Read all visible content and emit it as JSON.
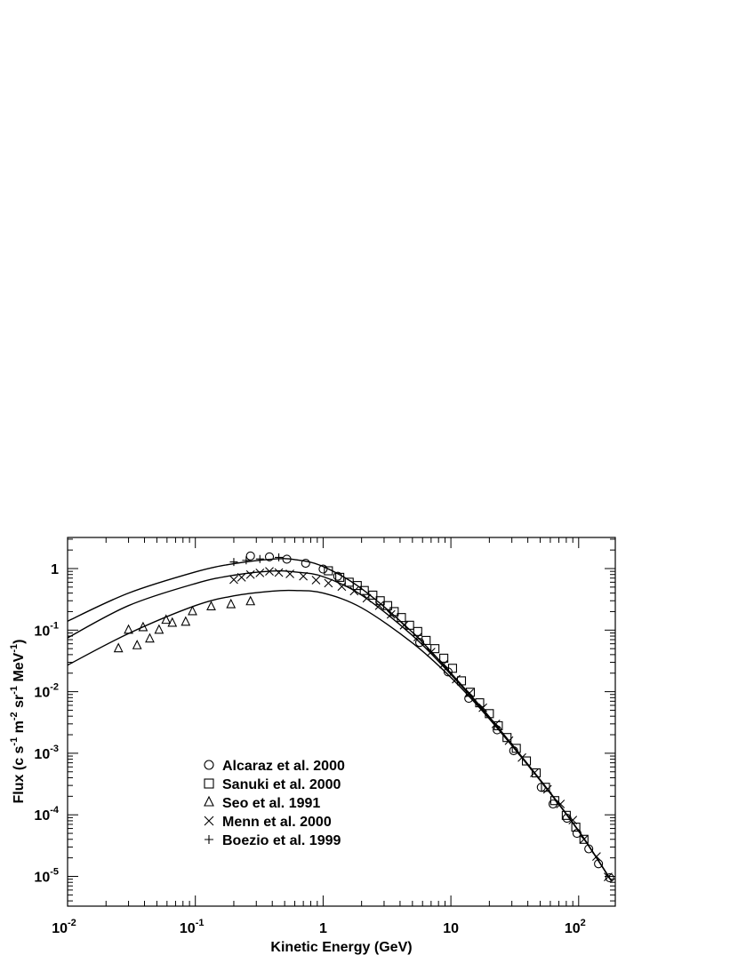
{
  "chart_data": {
    "type": "scatter",
    "title": "",
    "xlabel": "Kinetic Energy (GeV)",
    "ylabel": "Flux (c s^-1 m^-2 sr^-1 MeV^-1)",
    "ylabel_parts": [
      "Flux (c s",
      "-1",
      " m",
      "-2",
      " sr",
      "-1",
      " MeV",
      "-1",
      ")"
    ],
    "xscale": "log",
    "yscale": "log",
    "xlim": [
      0.01,
      180
    ],
    "ylim": [
      3e-06,
      3.2
    ],
    "x_ticks": [
      {
        "value": 0.01,
        "base": "10",
        "exp": "-2"
      },
      {
        "value": 0.1,
        "base": "10",
        "exp": "-1"
      },
      {
        "value": 1,
        "base": "1",
        "exp": ""
      },
      {
        "value": 10,
        "base": "10",
        "exp": ""
      },
      {
        "value": 100,
        "base": "10",
        "exp": "2"
      }
    ],
    "y_ticks": [
      {
        "value": 1,
        "base": "1",
        "exp": ""
      },
      {
        "value": 0.1,
        "base": "10",
        "exp": "-1"
      },
      {
        "value": 0.01,
        "base": "10",
        "exp": "-2"
      },
      {
        "value": 0.001,
        "base": "10",
        "exp": "-3"
      },
      {
        "value": 0.0001,
        "base": "10",
        "exp": "-4"
      },
      {
        "value": 1e-05,
        "base": "10",
        "exp": "-5"
      }
    ],
    "grid": false,
    "legend_position": "lower-left",
    "series": [
      {
        "name": "Alcaraz et al. 2000",
        "marker": "circle",
        "points": [
          [
            0.27,
            1.6
          ],
          [
            0.38,
            1.55
          ],
          [
            0.52,
            1.42
          ],
          [
            0.73,
            1.22
          ],
          [
            1.0,
            0.98
          ],
          [
            1.3,
            0.75
          ],
          [
            5.7,
            0.063
          ],
          [
            9.5,
            0.021
          ],
          [
            13.8,
            0.0078
          ],
          [
            23,
            0.0024
          ],
          [
            31,
            0.0011
          ],
          [
            51,
            0.00028
          ],
          [
            63,
            0.00015
          ],
          [
            81,
            8.8e-05
          ],
          [
            97,
            5e-05
          ],
          [
            120,
            2.8e-05
          ],
          [
            143,
            1.6e-05
          ],
          [
            175,
            9.5e-06
          ]
        ]
      },
      {
        "name": "Sanuki et al. 2000",
        "marker": "square",
        "points": [
          [
            1.1,
            0.92
          ],
          [
            1.35,
            0.72
          ],
          [
            1.6,
            0.6
          ],
          [
            1.85,
            0.53
          ],
          [
            2.1,
            0.44
          ],
          [
            2.45,
            0.37
          ],
          [
            2.8,
            0.3
          ],
          [
            3.2,
            0.25
          ],
          [
            3.6,
            0.2
          ],
          [
            4.1,
            0.16
          ],
          [
            4.75,
            0.12
          ],
          [
            5.5,
            0.095
          ],
          [
            6.4,
            0.068
          ],
          [
            7.5,
            0.05
          ],
          [
            8.8,
            0.035
          ],
          [
            10.3,
            0.024
          ],
          [
            12.1,
            0.015
          ],
          [
            14.2,
            0.0098
          ],
          [
            16.8,
            0.0066
          ],
          [
            20,
            0.0044
          ],
          [
            23.5,
            0.0028
          ],
          [
            27.5,
            0.0018
          ],
          [
            32.5,
            0.0012
          ],
          [
            39,
            0.00075
          ],
          [
            46.5,
            0.00048
          ],
          [
            55,
            0.00028
          ],
          [
            65,
            0.00017
          ],
          [
            80,
            9.8e-05
          ],
          [
            95,
            6.3e-05
          ],
          [
            110,
            4e-05
          ]
        ]
      },
      {
        "name": "Seo et al. 1991",
        "marker": "triangle",
        "points": [
          [
            0.025,
            0.05
          ],
          [
            0.03,
            0.1
          ],
          [
            0.035,
            0.056
          ],
          [
            0.039,
            0.11
          ],
          [
            0.044,
            0.072
          ],
          [
            0.052,
            0.1
          ],
          [
            0.059,
            0.145
          ],
          [
            0.066,
            0.13
          ],
          [
            0.084,
            0.135
          ],
          [
            0.095,
            0.2
          ],
          [
            0.133,
            0.24
          ],
          [
            0.19,
            0.26
          ],
          [
            0.27,
            0.29
          ]
        ]
      },
      {
        "name": "Menn et al. 2000",
        "marker": "cross",
        "points": [
          [
            0.2,
            0.66
          ],
          [
            0.23,
            0.72
          ],
          [
            0.27,
            0.8
          ],
          [
            0.32,
            0.85
          ],
          [
            0.38,
            0.9
          ],
          [
            0.45,
            0.86
          ],
          [
            0.55,
            0.82
          ],
          [
            0.7,
            0.75
          ],
          [
            0.88,
            0.65
          ],
          [
            1.1,
            0.58
          ],
          [
            1.4,
            0.51
          ],
          [
            1.75,
            0.43
          ],
          [
            2.2,
            0.33
          ],
          [
            2.75,
            0.25
          ],
          [
            3.4,
            0.18
          ],
          [
            4.3,
            0.12
          ],
          [
            5.5,
            0.077
          ],
          [
            7,
            0.044
          ],
          [
            8.8,
            0.028
          ],
          [
            11,
            0.016
          ],
          [
            14,
            0.0095
          ],
          [
            17.8,
            0.0055
          ],
          [
            22.5,
            0.003
          ],
          [
            28.5,
            0.0016
          ],
          [
            36,
            0.00085
          ],
          [
            45,
            0.00048
          ],
          [
            57,
            0.00026
          ],
          [
            72,
            0.00015
          ],
          [
            90,
            8.2e-05
          ],
          [
            110,
            4e-05
          ],
          [
            138,
            2.1e-05
          ],
          [
            170,
            9.8e-06
          ]
        ]
      },
      {
        "name": "Boezio et al. 1999",
        "marker": "plus",
        "points": [
          [
            0.2,
            1.28
          ],
          [
            0.25,
            1.36
          ],
          [
            0.32,
            1.43
          ],
          [
            0.45,
            1.52
          ]
        ]
      }
    ],
    "model_curves": [
      {
        "points": [
          [
            0.01,
            0.14
          ],
          [
            0.03,
            0.4
          ],
          [
            0.1,
            0.88
          ],
          [
            0.2,
            1.2
          ],
          [
            0.4,
            1.42
          ],
          [
            0.6,
            1.4
          ],
          [
            1,
            1.08
          ],
          [
            2,
            0.47
          ],
          [
            5,
            0.092
          ],
          [
            10,
            0.02
          ],
          [
            20,
            0.0039
          ],
          [
            50,
            0.00037
          ],
          [
            100,
            5.5e-05
          ],
          [
            180,
            8.5e-06
          ]
        ]
      },
      {
        "points": [
          [
            0.01,
            0.075
          ],
          [
            0.03,
            0.25
          ],
          [
            0.1,
            0.57
          ],
          [
            0.2,
            0.78
          ],
          [
            0.4,
            0.91
          ],
          [
            0.6,
            0.88
          ],
          [
            1,
            0.74
          ],
          [
            2,
            0.37
          ],
          [
            5,
            0.082
          ],
          [
            10,
            0.019
          ],
          [
            20,
            0.0038
          ],
          [
            50,
            0.00037
          ],
          [
            100,
            5.5e-05
          ],
          [
            180,
            8.5e-06
          ]
        ]
      },
      {
        "points": [
          [
            0.01,
            0.027
          ],
          [
            0.03,
            0.088
          ],
          [
            0.1,
            0.25
          ],
          [
            0.2,
            0.36
          ],
          [
            0.4,
            0.43
          ],
          [
            0.6,
            0.44
          ],
          [
            1,
            0.4
          ],
          [
            2,
            0.23
          ],
          [
            5,
            0.062
          ],
          [
            10,
            0.017
          ],
          [
            20,
            0.0036
          ],
          [
            50,
            0.00036
          ],
          [
            100,
            5.4e-05
          ],
          [
            180,
            8.5e-06
          ]
        ]
      }
    ]
  }
}
